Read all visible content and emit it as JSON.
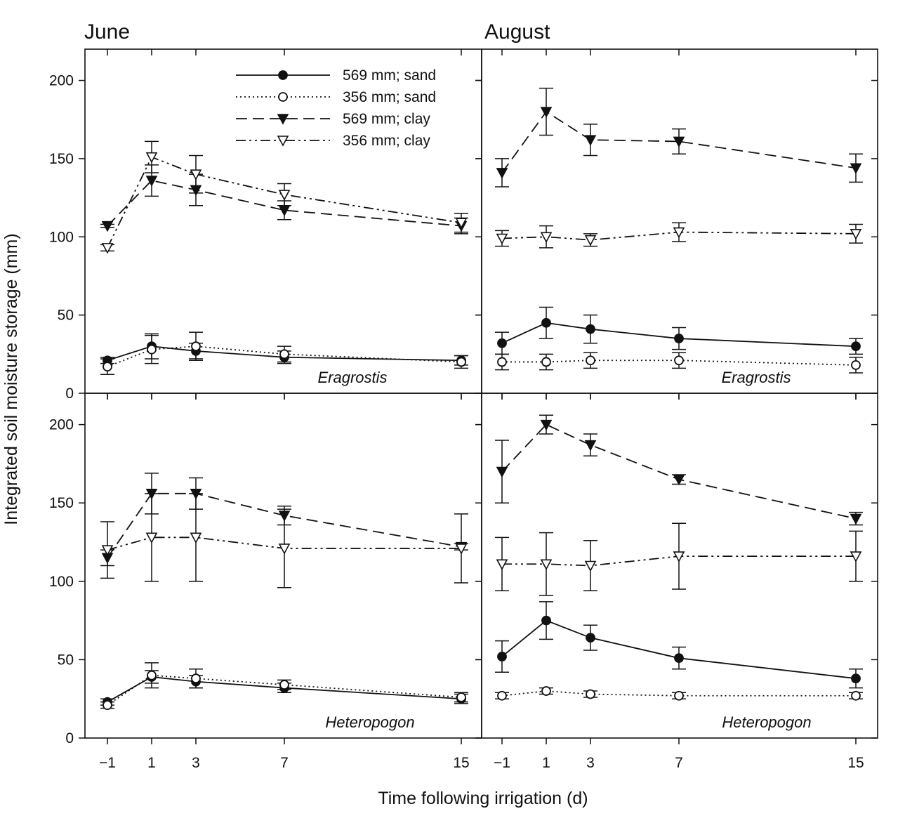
{
  "figure": {
    "column_titles": [
      "June",
      "August"
    ],
    "ylabel": "Integrated soil moisture storage (mm)",
    "xlabel": "Time following irrigation (d)"
  },
  "legend": [
    {
      "series": "569 mm; sand",
      "marker": "filled-circle",
      "line": "solid"
    },
    {
      "series": "356 mm; sand",
      "marker": "open-circle",
      "line": "dotted"
    },
    {
      "series": "569 mm; clay",
      "marker": "filled-triangle-down",
      "line": "dashed"
    },
    {
      "series": "356 mm; clay",
      "marker": "open-triangle-down",
      "line": "dash-dot-dot"
    }
  ],
  "chart_data": [
    {
      "type": "line",
      "month": "June",
      "panel_label": "Eragrostis",
      "x": [
        -1,
        1,
        3,
        7,
        15
      ],
      "xticks": [
        "−1",
        "1",
        "3",
        "7",
        "15"
      ],
      "ylim": [
        0,
        220
      ],
      "yticks": [
        0,
        50,
        100,
        150,
        200
      ],
      "series": [
        {
          "name": "569 mm; sand",
          "values": [
            21,
            30,
            27,
            23,
            21
          ],
          "errors": [
            2,
            8,
            5,
            4,
            3
          ]
        },
        {
          "name": "356 mm; sand",
          "values": [
            17,
            28,
            30,
            25,
            20
          ],
          "errors": [
            5,
            9,
            9,
            5,
            4
          ]
        },
        {
          "name": "569 mm; clay",
          "values": [
            107,
            136,
            130,
            117,
            107
          ],
          "errors": [
            1,
            10,
            10,
            6,
            5
          ]
        },
        {
          "name": "356 mm; clay",
          "values": [
            93,
            151,
            140,
            127,
            109
          ],
          "errors": [
            2,
            10,
            12,
            7,
            6
          ]
        }
      ]
    },
    {
      "type": "line",
      "month": "August",
      "panel_label": "Eragrostis",
      "x": [
        -1,
        1,
        3,
        7,
        15
      ],
      "xticks": [
        "−1",
        "1",
        "3",
        "7",
        "15"
      ],
      "ylim": [
        0,
        220
      ],
      "yticks": [
        0,
        50,
        100,
        150,
        200
      ],
      "series": [
        {
          "name": "569 mm; sand",
          "values": [
            32,
            45,
            41,
            35,
            30
          ],
          "errors": [
            7,
            10,
            9,
            7,
            5
          ]
        },
        {
          "name": "356 mm; sand",
          "values": [
            20,
            20,
            21,
            21,
            18
          ],
          "errors": [
            5,
            5,
            5,
            5,
            5
          ]
        },
        {
          "name": "569 mm; clay",
          "values": [
            141,
            180,
            162,
            161,
            144
          ],
          "errors": [
            9,
            15,
            10,
            8,
            9
          ]
        },
        {
          "name": "356 mm; clay",
          "values": [
            99,
            100,
            98,
            103,
            102
          ],
          "errors": [
            5,
            7,
            4,
            6,
            6
          ]
        }
      ]
    },
    {
      "type": "line",
      "month": "June",
      "panel_label": "Heteropogon",
      "x": [
        -1,
        1,
        3,
        7,
        15
      ],
      "xticks": [
        "−1",
        "1",
        "3",
        "7",
        "15"
      ],
      "ylim": [
        0,
        220
      ],
      "yticks": [
        0,
        50,
        100,
        150,
        200
      ],
      "series": [
        {
          "name": "569 mm; sand",
          "values": [
            23,
            39,
            36,
            32,
            25
          ],
          "errors": [
            2,
            4,
            4,
            3,
            3
          ]
        },
        {
          "name": "356 mm; sand",
          "values": [
            21,
            40,
            38,
            34,
            26
          ],
          "errors": [
            2,
            8,
            6,
            3,
            3
          ]
        },
        {
          "name": "569 mm; clay",
          "values": [
            115,
            156,
            156,
            142,
            122
          ],
          "errors": [
            5,
            13,
            10,
            6,
            2
          ]
        },
        {
          "name": "356 mm; clay",
          "values": [
            120,
            128,
            128,
            121,
            121
          ],
          "errors": [
            18,
            28,
            28,
            25,
            22
          ]
        }
      ]
    },
    {
      "type": "line",
      "month": "August",
      "panel_label": "Heteropogon",
      "x": [
        -1,
        1,
        3,
        7,
        15
      ],
      "xticks": [
        "−1",
        "1",
        "3",
        "7",
        "15"
      ],
      "ylim": [
        0,
        220
      ],
      "yticks": [
        0,
        50,
        100,
        150,
        200
      ],
      "series": [
        {
          "name": "569 mm; sand",
          "values": [
            52,
            75,
            64,
            51,
            38
          ],
          "errors": [
            10,
            12,
            8,
            7,
            6
          ]
        },
        {
          "name": "356 mm; sand",
          "values": [
            27,
            30,
            28,
            27,
            27
          ],
          "errors": [
            2,
            2,
            2,
            2,
            2
          ]
        },
        {
          "name": "569 mm; clay",
          "values": [
            170,
            200,
            187,
            165,
            140
          ],
          "errors": [
            20,
            6,
            7,
            3,
            4
          ]
        },
        {
          "name": "356 mm; clay",
          "values": [
            111,
            111,
            110,
            116,
            116
          ],
          "errors": [
            17,
            20,
            16,
            21,
            16
          ]
        }
      ]
    }
  ]
}
